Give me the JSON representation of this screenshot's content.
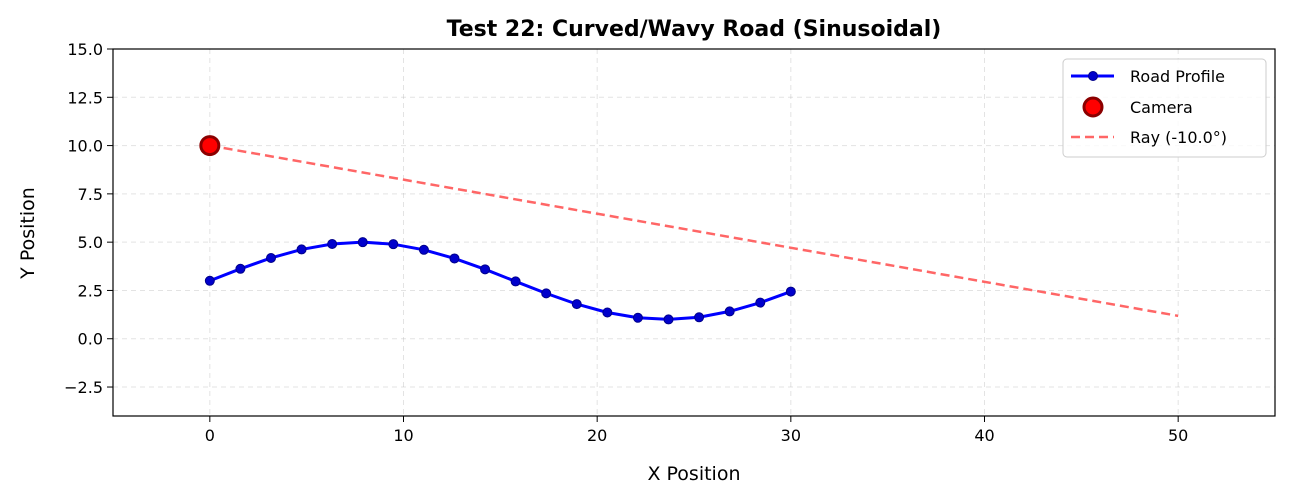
{
  "chart_data": {
    "type": "line",
    "title": "Test 22: Curved/Wavy Road (Sinusoidal)",
    "xlabel": "X Position",
    "ylabel": "Y Position",
    "xlim": [
      -5,
      55
    ],
    "ylim": [
      -4,
      15
    ],
    "xticks": [
      0,
      10,
      20,
      30,
      40,
      50
    ],
    "xtick_labels": [
      "0",
      "10",
      "20",
      "30",
      "40",
      "50"
    ],
    "yticks": [
      -2.5,
      0,
      2.5,
      5,
      7.5,
      10,
      12.5,
      15
    ],
    "ytick_labels": [
      "−2.5",
      "0.0",
      "2.5",
      "5.0",
      "7.5",
      "10.0",
      "12.5",
      "15.0"
    ],
    "grid": true,
    "legend_position": "top-right",
    "series": [
      {
        "name": "Road Profile",
        "color": "#0000ff",
        "marker_color": "#0000cc",
        "style": "solid-with-markers",
        "x": [
          0,
          1.579,
          3.158,
          4.737,
          6.316,
          7.895,
          9.474,
          11.053,
          12.632,
          14.211,
          15.789,
          17.368,
          18.947,
          20.526,
          22.105,
          23.684,
          25.263,
          26.842,
          28.421,
          30
        ],
        "y": [
          3,
          3.621,
          4.181,
          4.624,
          4.906,
          5.0,
          4.895,
          4.604,
          4.156,
          3.593,
          2.967,
          2.348,
          1.793,
          1.359,
          1.086,
          1.0,
          1.111,
          1.415,
          1.869,
          2.441
        ]
      },
      {
        "name": "Camera",
        "color": "#ff0000",
        "edge_color": "#8b0000",
        "style": "point",
        "x": [
          0
        ],
        "y": [
          10
        ]
      },
      {
        "name": "Ray (-10.0°)",
        "color": "#ff6666",
        "style": "dashed",
        "x": [
          0,
          50
        ],
        "y": [
          10,
          1.184
        ]
      }
    ]
  }
}
